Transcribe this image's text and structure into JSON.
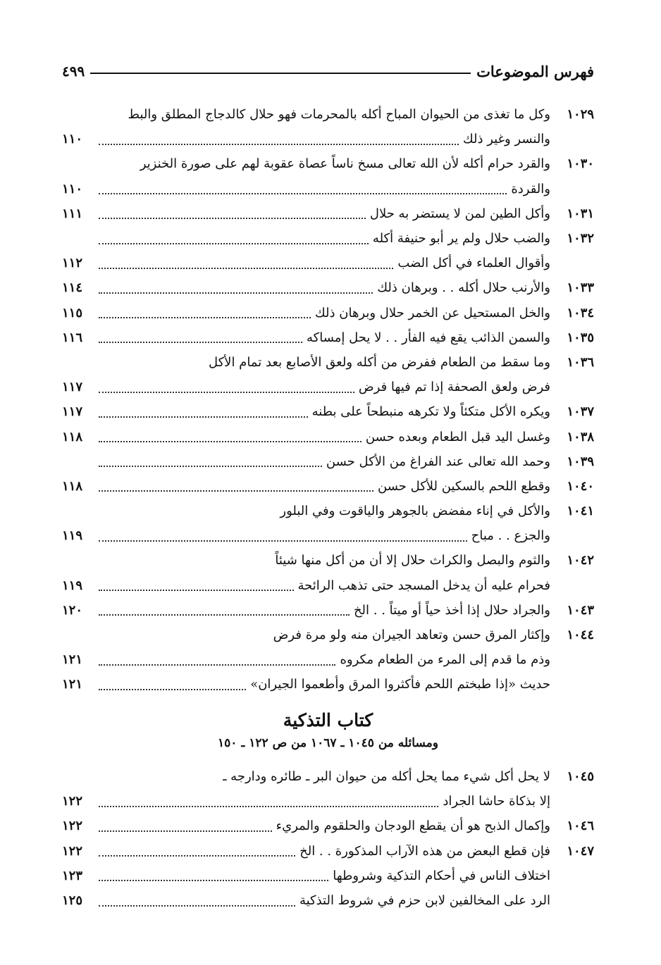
{
  "header": {
    "title": "فهرس الموضوعات",
    "page": "٤٩٩"
  },
  "entries": [
    {
      "num": "١٠٢٩",
      "lines": [
        {
          "text": "وكل ما تغذى من الحيوان المباح أكله بالمحرمات فهو حلال كالدجاج المطلق والبط"
        },
        {
          "text": "والنسر وغير ذلك",
          "page": "١١٠"
        }
      ]
    },
    {
      "num": "١٠٣٠",
      "lines": [
        {
          "text": "والقرد حرام أكله لأن الله تعالى مسخ ناساً عصاة عقوبة لهم على صورة الخنزير"
        },
        {
          "text": "والقردة",
          "page": "١١٠"
        }
      ]
    },
    {
      "num": "١٠٣١",
      "lines": [
        {
          "text": "وأكل الطين لمن لا يستضر به حلال",
          "page": "١١١"
        }
      ]
    },
    {
      "num": "١٠٣٢",
      "lines": [
        {
          "text": "والضب حلال ولم ير أبو حنيفة أكله",
          "page": null
        },
        {
          "text": "وأقوال العلماء في أكل الضب",
          "page": "١١٢"
        }
      ]
    },
    {
      "num": "١٠٣٣",
      "lines": [
        {
          "text": "والأرنب حلال أكله . . وبرهان ذلك",
          "page": "١١٤"
        }
      ]
    },
    {
      "num": "١٠٣٤",
      "lines": [
        {
          "text": "والخل المستحيل عن الخمر حلال وبرهان ذلك",
          "page": "١١٥"
        }
      ]
    },
    {
      "num": "١٠٣٥",
      "lines": [
        {
          "text": "والسمن الذائب يقع فيه الفأر . . لا يحل إمساكه",
          "page": "١١٦"
        }
      ]
    },
    {
      "num": "١٠٣٦",
      "lines": [
        {
          "text": "وما سقط من الطعام ففرض من أكله ولعق الأصابع بعد تمام الأكل"
        },
        {
          "text": "فرض ولعق الصحفة إذا تم فيها فرض",
          "page": "١١٧"
        }
      ]
    },
    {
      "num": "١٠٣٧",
      "lines": [
        {
          "text": "ويكره الأكل متكئاً ولا تكرهه منبطحاً على بطنه",
          "page": "١١٧"
        }
      ]
    },
    {
      "num": "١٠٣٨",
      "lines": [
        {
          "text": "وغسل اليد قبل الطعام وبعده حسن",
          "page": "١١٨"
        }
      ]
    },
    {
      "num": "١٠٣٩",
      "lines": [
        {
          "text": "وحمد الله تعالى عند الفراغ من الأكل حسن",
          "page": null
        }
      ]
    },
    {
      "num": "١٠٤٠",
      "lines": [
        {
          "text": "وقطع اللحم بالسكين للأكل حسن",
          "page": "١١٨"
        }
      ]
    },
    {
      "num": "١٠٤١",
      "lines": [
        {
          "text": "والأكل في إناء مفضض بالجوهر والياقوت وفي البلور"
        },
        {
          "text": "والجزع . . مباح",
          "page": "١١٩"
        }
      ]
    },
    {
      "num": "١٠٤٢",
      "lines": [
        {
          "text": "والثوم والبصل والكراث حلال إلا أن من أكل منها شيئاً"
        },
        {
          "text": "فحرام عليه أن يدخل المسجد حتى تذهب الرائحة",
          "page": "١١٩"
        }
      ]
    },
    {
      "num": "١٠٤٣",
      "lines": [
        {
          "text": "والجراد حلال إذا أخذ حياً أو ميتاً . . الخ",
          "page": "١٢٠"
        }
      ]
    },
    {
      "num": "١٠٤٤",
      "lines": [
        {
          "text": "وإكثار المرق حسن وتعاهد الجيران منه ولو مرة فرض"
        },
        {
          "text": "وذم ما قدم إلى المرء من الطعام مكروه",
          "page": "١٢١"
        },
        {
          "text": "حديث «إذا طبختم اللحم فأكثروا المرق وأطعموا الجيران»",
          "page": "١٢١"
        }
      ]
    }
  ],
  "section": {
    "title": "كتاب التذكية",
    "subtitle": "ومسائله من ١٠٤٥ ـ ١٠٦٧ من ص ١٢٢ ـ ١٥٠",
    "entries": [
      {
        "num": "١٠٤٥",
        "lines": [
          {
            "text": "لا يحل أكل شيء مما يحل أكله من حيوان البر ـ طائره ودارجه ـ"
          },
          {
            "text": "إلا بذكاة حاشا الجراد",
            "page": "١٢٢"
          }
        ]
      },
      {
        "num": "١٠٤٦",
        "lines": [
          {
            "text": "وإكمال الذبح هو أن يقطع الودجان والحلقوم والمريء",
            "page": "١٢٢"
          }
        ]
      },
      {
        "num": "١٠٤٧",
        "lines": [
          {
            "text": "فإن قطع البعض من هذه الآراب المذكورة . . الخ",
            "page": "١٢٢"
          }
        ]
      },
      {
        "lines": [
          {
            "text": "اختلاف الناس في أحكام التذكية وشروطها",
            "page": "١٢٣"
          }
        ]
      },
      {
        "lines": [
          {
            "text": "الرد على المخالفين لابن حزم في شروط التذكية",
            "page": "١٢٥"
          }
        ]
      }
    ]
  }
}
